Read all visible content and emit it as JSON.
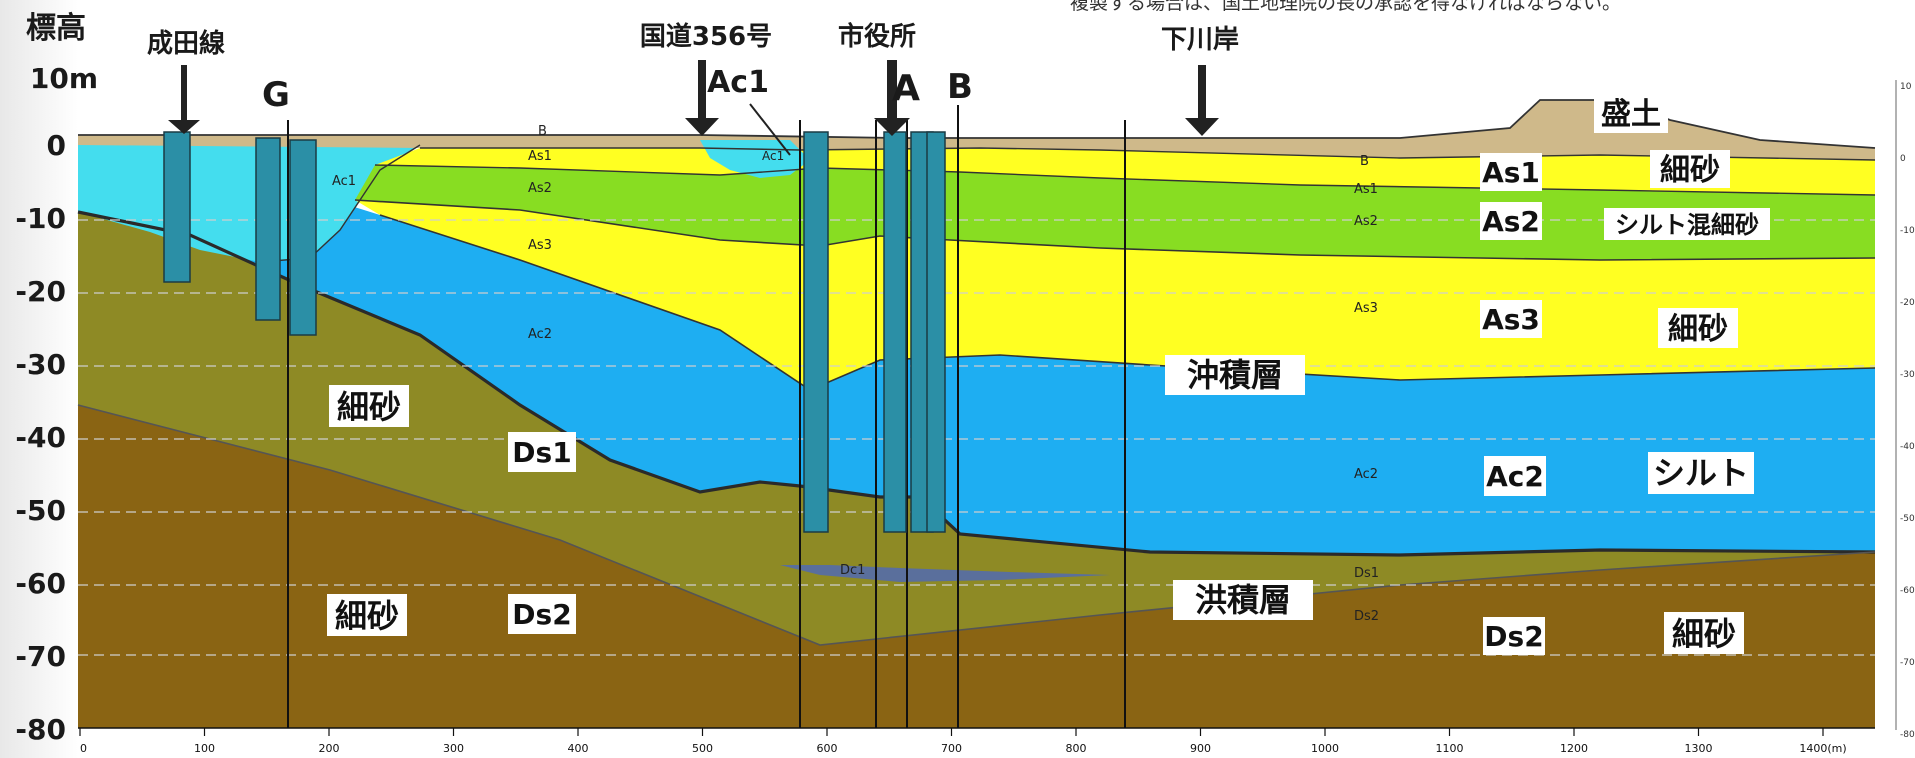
{
  "notice": "複製する場合は、国土地理院の長の承認を得なければならない。",
  "y_axis": {
    "title": "標高",
    "unit": "10m",
    "ticks": [
      "0",
      "-10",
      "-20",
      "-30",
      "-40",
      "-50",
      "-60",
      "-70",
      "-80"
    ]
  },
  "x_axis": {
    "ticks": [
      "0",
      "100",
      "200",
      "300",
      "400",
      "500",
      "600",
      "700",
      "800",
      "900",
      "1000",
      "1100",
      "1200",
      "1300",
      "1400(m)"
    ]
  },
  "right_ticks": [
    "10",
    "0",
    "-10",
    "-20",
    "-30",
    "-40",
    "-50",
    "-60",
    "-70",
    "-80"
  ],
  "landmarks": {
    "narita": "成田線",
    "route356": "国道356号",
    "cityhall": "市役所",
    "shimokawagishi": "下川岸"
  },
  "sections": {
    "G": "G",
    "A": "A",
    "B": "B"
  },
  "callout_ac1": "Ac1",
  "layers": {
    "morido": "盛土",
    "as1": "As1",
    "as2": "As2",
    "as3": "As3",
    "ac2": "Ac2",
    "ds1": "Ds1",
    "ds2_left": "Ds2",
    "ds2_right": "Ds2",
    "saisuna_as1": "細砂",
    "silt_mixed": "シルト混細砂",
    "saisuna_as3": "細砂",
    "silt": "シルト",
    "saisuna_right": "細砂",
    "saisuna_ds1_left": "細砂",
    "saisuna_ds2_left": "細砂",
    "chuseki": "沖積層",
    "kouseki": "洪積層"
  },
  "small_labels": {
    "b_top": "B",
    "as1_mid": "As1",
    "as2_mid": "As2",
    "as3_mid": "As3",
    "ac1_left": "Ac1",
    "ac2_mid": "Ac2",
    "ac1_dip": "Ac1",
    "b_right": "B",
    "as1_right": "As1",
    "as2_right": "As2",
    "as3_right": "As3",
    "ac2_right": "Ac2",
    "ds1_right": "Ds1",
    "ds2_right": "Ds2",
    "dc1": "Dc1"
  },
  "colors": {
    "fill_topsoil": "#cfb98a",
    "as_yellow": "#ffff22",
    "as2_green": "#88dd22",
    "ac_blue": "#1eaef2",
    "ac1_cyan": "#44ddee",
    "ds1_olive": "#8e8a25",
    "ds2_brown": "#8a6413",
    "dc1_slate": "#5a6f9c"
  }
}
